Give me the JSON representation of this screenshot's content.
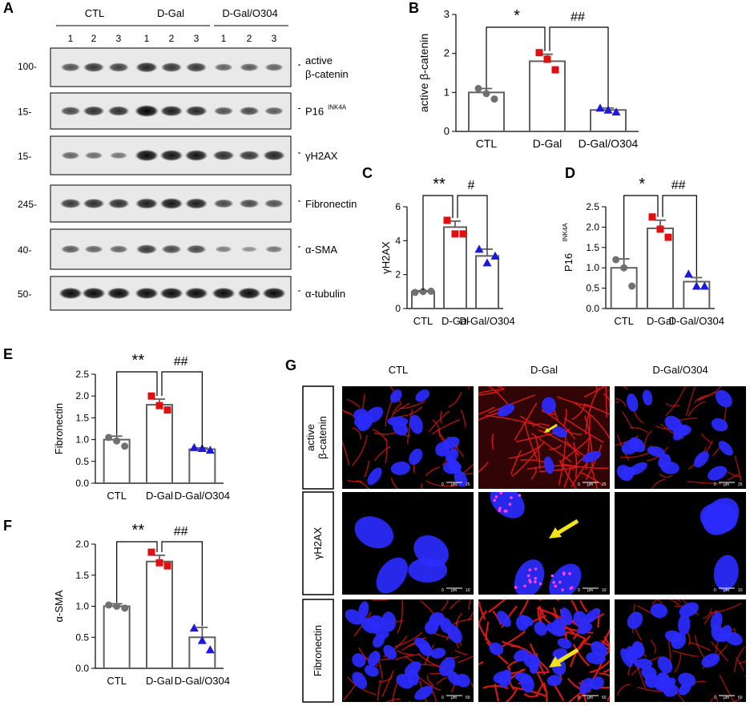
{
  "colors": {
    "ctl": "#707070",
    "dgal": "#e01010",
    "o304": "#1a1ad8",
    "bar_edge": "#606060",
    "nucleus": "#2b2bff",
    "actin": "#e01818",
    "arrow": "#f2e21a"
  },
  "panels": {
    "A": "A",
    "B": "B",
    "C": "C",
    "D": "D",
    "E": "E",
    "F": "F",
    "G": "G"
  },
  "blot": {
    "groups": [
      "CTL",
      "D-Gal",
      "D-Gal/O304"
    ],
    "lanes": [
      "1",
      "2",
      "3"
    ],
    "rows": [
      {
        "marker": "100-",
        "label": "active",
        "label2": "β-catenin",
        "sup": "",
        "intensity": [
          0.55,
          0.7,
          0.65,
          0.8,
          0.7,
          0.7,
          0.45,
          0.5,
          0.45
        ]
      },
      {
        "marker": "15-",
        "label": "P16",
        "label2": "",
        "sup": "INK4A",
        "intensity": [
          0.6,
          0.75,
          0.75,
          1.0,
          0.85,
          0.8,
          0.55,
          0.6,
          0.5
        ]
      },
      {
        "marker": "15-",
        "label": "γH2AX",
        "label2": "",
        "sup": "",
        "intensity": [
          0.45,
          0.4,
          0.35,
          0.95,
          0.9,
          0.9,
          0.75,
          0.7,
          0.8
        ]
      },
      {
        "marker": "245-",
        "label": "Fibronectin",
        "label2": "",
        "sup": "",
        "intensity": [
          0.7,
          0.75,
          0.75,
          0.85,
          0.9,
          0.85,
          0.6,
          0.6,
          0.55
        ]
      },
      {
        "marker": "40-",
        "label": "α-SMA",
        "label2": "",
        "sup": "",
        "intensity": [
          0.5,
          0.45,
          0.45,
          0.7,
          0.6,
          0.6,
          0.3,
          0.2,
          0.35
        ]
      },
      {
        "marker": "50-",
        "label": "α-tubulin",
        "label2": "",
        "sup": "",
        "intensity": [
          0.95,
          0.95,
          0.95,
          0.95,
          0.95,
          0.95,
          0.95,
          0.95,
          0.95
        ]
      }
    ]
  },
  "chart_data": [
    {
      "panel": "B",
      "type": "bar",
      "categories": [
        "CTL",
        "D-Gal",
        "D-Gal/O304"
      ],
      "values": [
        1.0,
        1.8,
        0.55
      ],
      "errors": [
        0.1,
        0.18,
        0.05
      ],
      "points": [
        [
          1.1,
          0.97,
          0.83
        ],
        [
          2.02,
          1.85,
          1.58
        ],
        [
          0.6,
          0.55,
          0.5
        ]
      ],
      "ylabel": "active β-catenin",
      "ylabel_sup": "",
      "ylim": [
        0,
        3
      ],
      "yticks": [
        "0",
        "1",
        "2",
        "3"
      ],
      "sig": [
        "*",
        "##"
      ]
    },
    {
      "panel": "C",
      "type": "bar",
      "categories": [
        "CTL",
        "D-Gal",
        "D-Gal/O304"
      ],
      "values": [
        1.0,
        4.8,
        3.1
      ],
      "errors": [
        0.05,
        0.35,
        0.4
      ],
      "points": [
        [
          0.95,
          1.0,
          1.02
        ],
        [
          5.2,
          4.4,
          4.4
        ],
        [
          3.5,
          2.7,
          3.1
        ]
      ],
      "ylabel": "γH2AX",
      "ylabel_sup": "",
      "ylim": [
        0,
        6
      ],
      "yticks": [
        "0",
        "2",
        "4",
        "6"
      ],
      "sig": [
        "**",
        "#"
      ]
    },
    {
      "panel": "D",
      "type": "bar",
      "categories": [
        "CTL",
        "D-Gal",
        "D-Gal/O304"
      ],
      "values": [
        1.0,
        1.97,
        0.66
      ],
      "errors": [
        0.22,
        0.2,
        0.1
      ],
      "points": [
        [
          1.2,
          1.0,
          0.55
        ],
        [
          2.25,
          1.95,
          1.75
        ],
        [
          0.85,
          0.55,
          0.55
        ]
      ],
      "ylabel": "P16",
      "ylabel_sup": "INK4A",
      "ylim": [
        0,
        2.5
      ],
      "yticks": [
        "0.0",
        "0.5",
        "1.0",
        "1.5",
        "2.0",
        "2.5"
      ],
      "sig": [
        "*",
        "##"
      ]
    },
    {
      "panel": "E",
      "type": "bar",
      "categories": [
        "CTL",
        "D-Gal",
        "D-Gal/O304"
      ],
      "values": [
        1.0,
        1.8,
        0.78
      ],
      "errors": [
        0.08,
        0.13,
        0.03
      ],
      "points": [
        [
          1.05,
          0.97,
          0.85
        ],
        [
          2.0,
          1.78,
          1.68
        ],
        [
          0.82,
          0.8,
          0.76
        ]
      ],
      "ylabel": "Fibronectin",
      "ylabel_sup": "",
      "ylim": [
        0,
        2.5
      ],
      "yticks": [
        "0.0",
        "0.5",
        "1.0",
        "1.5",
        "2.0",
        "2.5"
      ],
      "sig": [
        "**",
        "##"
      ]
    },
    {
      "panel": "F",
      "type": "bar",
      "categories": [
        "CTL",
        "D-Gal",
        "D-Gal/O304"
      ],
      "values": [
        1.0,
        1.72,
        0.5
      ],
      "errors": [
        0.04,
        0.1,
        0.16
      ],
      "points": [
        [
          1.02,
          1.0,
          0.97
        ],
        [
          1.87,
          1.7,
          1.65
        ],
        [
          0.65,
          0.45,
          0.3
        ]
      ],
      "ylabel": "α-SMA",
      "ylabel_sup": "",
      "ylim": [
        0,
        2.0
      ],
      "yticks": [
        "0.0",
        "0.5",
        "1.0",
        "1.5",
        "2.0"
      ],
      "sig": [
        "**",
        "##"
      ]
    }
  ],
  "microscopy": {
    "columns": [
      "CTL",
      "D-Gal",
      "D-Gal/O304"
    ],
    "rows": [
      {
        "label": "active",
        "label2": "β-catenin",
        "scale": "25"
      },
      {
        "label": "γH2AX",
        "label2": "",
        "scale": "10"
      },
      {
        "label": "Fibronectin",
        "label2": "",
        "scale": "50"
      }
    ],
    "scale_unit": "μm",
    "scale_zero": "0"
  }
}
